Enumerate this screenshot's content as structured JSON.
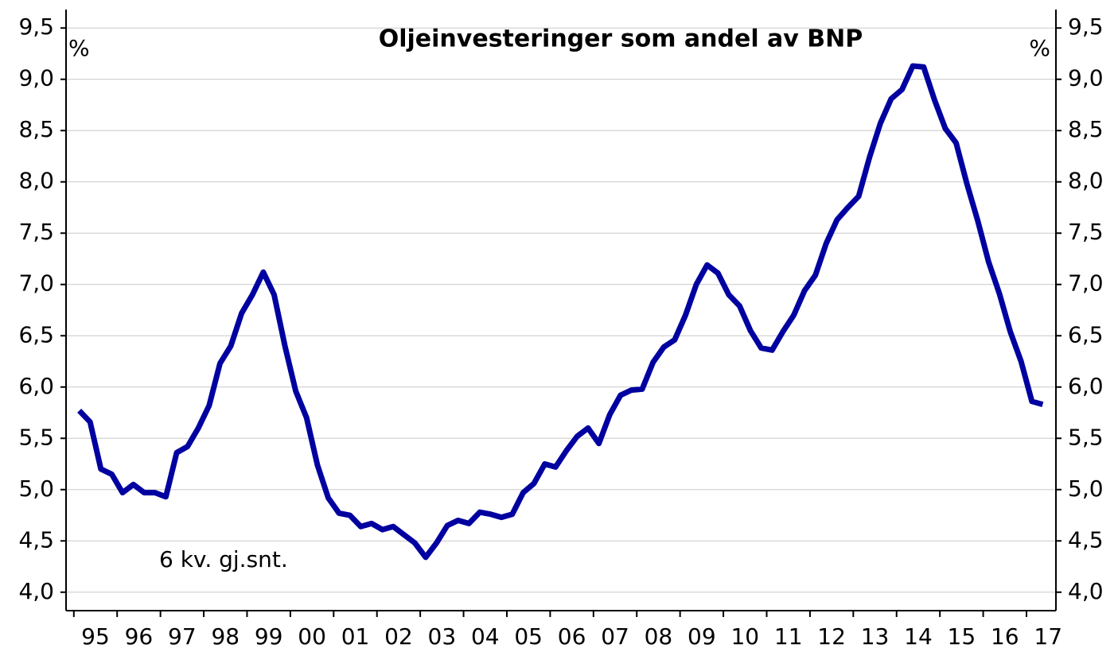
{
  "chart_data": {
    "type": "line",
    "title": "Oljeinvesteringer som andel av BNP",
    "y_label": "%",
    "y2_label": "%",
    "annotation": "6 kv. gj.snt.",
    "grid": true,
    "xlim": [
      1994.82,
      2017.68
    ],
    "ylim": [
      3.82,
      9.68
    ],
    "y2lim": [
      3.82,
      9.68
    ],
    "xticks": [
      {
        "value": 1995,
        "label": "95"
      },
      {
        "value": 1996,
        "label": "96"
      },
      {
        "value": 1997,
        "label": "97"
      },
      {
        "value": 1998,
        "label": "98"
      },
      {
        "value": 1999,
        "label": "99"
      },
      {
        "value": 2000,
        "label": "00"
      },
      {
        "value": 2001,
        "label": "01"
      },
      {
        "value": 2002,
        "label": "02"
      },
      {
        "value": 2003,
        "label": "03"
      },
      {
        "value": 2004,
        "label": "04"
      },
      {
        "value": 2005,
        "label": "05"
      },
      {
        "value": 2006,
        "label": "06"
      },
      {
        "value": 2007,
        "label": "07"
      },
      {
        "value": 2008,
        "label": "08"
      },
      {
        "value": 2009,
        "label": "09"
      },
      {
        "value": 2010,
        "label": "10"
      },
      {
        "value": 2011,
        "label": "11"
      },
      {
        "value": 2012,
        "label": "12"
      },
      {
        "value": 2013,
        "label": "13"
      },
      {
        "value": 2014,
        "label": "14"
      },
      {
        "value": 2015,
        "label": "15"
      },
      {
        "value": 2016,
        "label": "16"
      },
      {
        "value": 2017,
        "label": "17"
      }
    ],
    "yticks": [
      {
        "value": 4.0,
        "label": "4,0"
      },
      {
        "value": 4.5,
        "label": "4,5"
      },
      {
        "value": 5.0,
        "label": "5,0"
      },
      {
        "value": 5.5,
        "label": "5,5"
      },
      {
        "value": 6.0,
        "label": "6,0"
      },
      {
        "value": 6.5,
        "label": "6,5"
      },
      {
        "value": 7.0,
        "label": "7,0"
      },
      {
        "value": 7.5,
        "label": "7,5"
      },
      {
        "value": 8.0,
        "label": "8,0"
      },
      {
        "value": 8.5,
        "label": "8,5"
      },
      {
        "value": 9.0,
        "label": "9,0"
      },
      {
        "value": 9.5,
        "label": "9,5"
      }
    ],
    "y2ticks": [
      {
        "value": 4.0,
        "label": "4,0"
      },
      {
        "value": 4.5,
        "label": "4,5"
      },
      {
        "value": 5.0,
        "label": "5,0"
      },
      {
        "value": 5.5,
        "label": "5,5"
      },
      {
        "value": 6.0,
        "label": "6,0"
      },
      {
        "value": 6.5,
        "label": "6,5"
      },
      {
        "value": 7.0,
        "label": "7,0"
      },
      {
        "value": 7.5,
        "label": "7,5"
      },
      {
        "value": 8.0,
        "label": "8,0"
      },
      {
        "value": 8.5,
        "label": "8,5"
      },
      {
        "value": 9.0,
        "label": "9,0"
      },
      {
        "value": 9.5,
        "label": "9,5"
      }
    ],
    "x": [
      1995.125,
      1995.375,
      1995.625,
      1995.875,
      1996.125,
      1996.375,
      1996.625,
      1996.875,
      1997.125,
      1997.375,
      1997.625,
      1997.875,
      1998.125,
      1998.375,
      1998.625,
      1998.875,
      1999.125,
      1999.375,
      1999.625,
      1999.875,
      2000.125,
      2000.375,
      2000.625,
      2000.875,
      2001.125,
      2001.375,
      2001.625,
      2001.875,
      2002.125,
      2002.375,
      2002.625,
      2002.875,
      2003.125,
      2003.375,
      2003.625,
      2003.875,
      2004.125,
      2004.375,
      2004.625,
      2004.875,
      2005.125,
      2005.375,
      2005.625,
      2005.875,
      2006.125,
      2006.375,
      2006.625,
      2006.875,
      2007.125,
      2007.375,
      2007.625,
      2007.875,
      2008.125,
      2008.375,
      2008.625,
      2008.875,
      2009.125,
      2009.375,
      2009.625,
      2009.875,
      2010.125,
      2010.375,
      2010.625,
      2010.875,
      2011.125,
      2011.375,
      2011.625,
      2011.875,
      2012.125,
      2012.375,
      2012.625,
      2012.875,
      2013.125,
      2013.375,
      2013.625,
      2013.875,
      2014.125,
      2014.375,
      2014.625,
      2014.875,
      2015.125,
      2015.375,
      2015.625,
      2015.875,
      2016.125,
      2016.375,
      2016.625,
      2016.875,
      2017.125,
      2017.375
    ],
    "series": [
      {
        "color": "#0000a0",
        "values": [
          5.77,
          5.66,
          5.2,
          5.15,
          4.97,
          5.05,
          4.97,
          4.97,
          4.93,
          5.36,
          5.42,
          5.6,
          5.82,
          6.23,
          6.4,
          6.72,
          6.9,
          7.12,
          6.9,
          6.4,
          5.96,
          5.7,
          5.24,
          4.92,
          4.77,
          4.75,
          4.64,
          4.67,
          4.61,
          4.64,
          4.56,
          4.48,
          4.34,
          4.48,
          4.65,
          4.7,
          4.67,
          4.78,
          4.76,
          4.73,
          4.76,
          4.97,
          5.06,
          5.25,
          5.22,
          5.38,
          5.52,
          5.6,
          5.45,
          5.73,
          5.92,
          5.97,
          5.98,
          6.24,
          6.39,
          6.46,
          6.7,
          7.0,
          7.19,
          7.11,
          6.9,
          6.79,
          6.55,
          6.38,
          6.36,
          6.54,
          6.7,
          6.94,
          7.09,
          7.4,
          7.63,
          7.75,
          7.86,
          8.24,
          8.57,
          8.81,
          8.9,
          9.13,
          9.12,
          8.8,
          8.52,
          8.38,
          7.98,
          7.62,
          7.22,
          6.91,
          6.54,
          6.25,
          5.86,
          5.83
        ]
      }
    ]
  }
}
